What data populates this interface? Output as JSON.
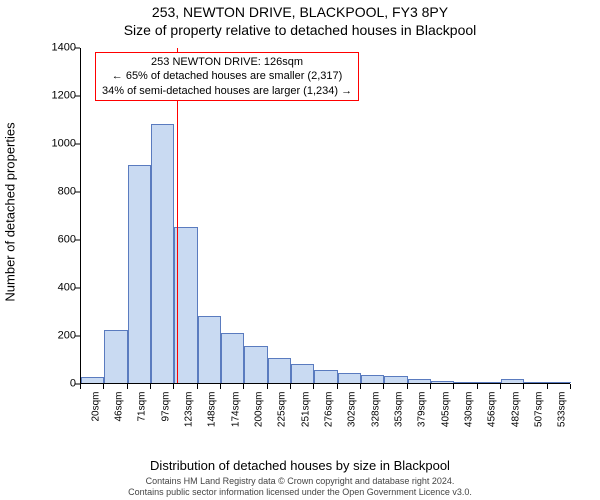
{
  "title": "253, NEWTON DRIVE, BLACKPOOL, FY3 8PY",
  "subtitle": "Size of property relative to detached houses in Blackpool",
  "y_axis_label": "Number of detached properties",
  "x_axis_label": "Distribution of detached houses by size in Blackpool",
  "footer_line1": "Contains HM Land Registry data © Crown copyright and database right 2024.",
  "footer_line2": "Contains public sector information licensed under the Open Government Licence v3.0.",
  "chart": {
    "type": "histogram",
    "ylim": [
      0,
      1400
    ],
    "ytick_step": 200,
    "y_ticks": [
      0,
      200,
      400,
      600,
      800,
      1000,
      1200,
      1400
    ],
    "bar_color": "#c9daf2",
    "bar_border_color": "#5a7bbf",
    "bar_border_width": 1,
    "background_color": "#ffffff",
    "axis_color": "#000000",
    "tick_fontsize": 11,
    "x_tick_fontsize": 10,
    "label_fontsize": 13,
    "bars": [
      {
        "label": "20sqm",
        "value": 25
      },
      {
        "label": "46sqm",
        "value": 220
      },
      {
        "label": "71sqm",
        "value": 910
      },
      {
        "label": "97sqm",
        "value": 1080
      },
      {
        "label": "123sqm",
        "value": 650
      },
      {
        "label": "148sqm",
        "value": 280
      },
      {
        "label": "174sqm",
        "value": 210
      },
      {
        "label": "200sqm",
        "value": 155
      },
      {
        "label": "225sqm",
        "value": 105
      },
      {
        "label": "251sqm",
        "value": 80
      },
      {
        "label": "276sqm",
        "value": 55
      },
      {
        "label": "302sqm",
        "value": 40
      },
      {
        "label": "328sqm",
        "value": 35
      },
      {
        "label": "353sqm",
        "value": 30
      },
      {
        "label": "379sqm",
        "value": 15
      },
      {
        "label": "405sqm",
        "value": 8
      },
      {
        "label": "430sqm",
        "value": 5
      },
      {
        "label": "456sqm",
        "value": 5
      },
      {
        "label": "482sqm",
        "value": 15
      },
      {
        "label": "507sqm",
        "value": 3
      },
      {
        "label": "533sqm",
        "value": 2
      }
    ],
    "marker": {
      "value_sqm": 126,
      "bin_start": 20,
      "bin_width": 25.65,
      "color": "#ff0000",
      "line_width": 1
    },
    "annotation": {
      "line1": "253 NEWTON DRIVE: 126sqm",
      "line2": "← 65% of detached houses are smaller (2,317)",
      "line3": "34% of semi-detached houses are larger (1,234) →",
      "border_color": "#ff0000",
      "background_color": "#ffffff",
      "fontsize": 11
    }
  }
}
